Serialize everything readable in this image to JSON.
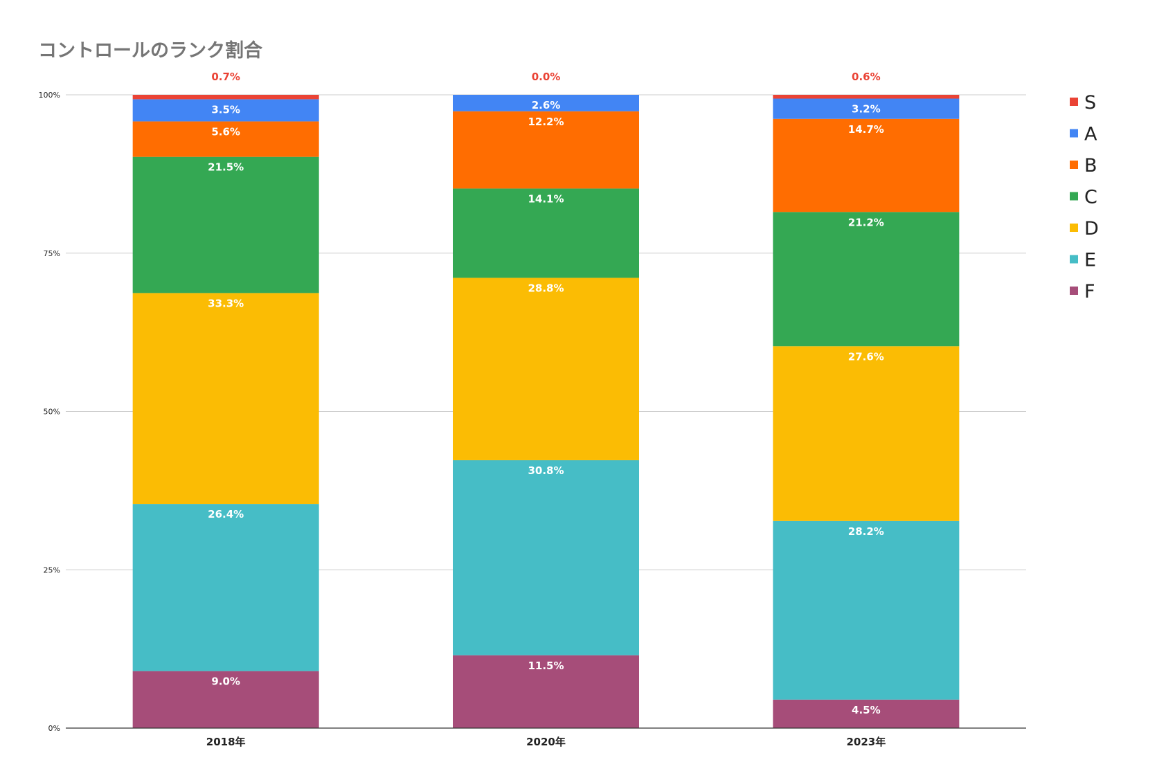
{
  "chart_data": {
    "type": "bar",
    "stacked": true,
    "title": "コントロールのランク割合",
    "xlabel": "",
    "ylabel": "",
    "categories": [
      "2018年",
      "2020年",
      "2023年"
    ],
    "ylim": [
      0,
      100
    ],
    "yticks": [
      0,
      25,
      50,
      75,
      100
    ],
    "ytick_labels": [
      "0%",
      "25%",
      "50%",
      "75%",
      "100%"
    ],
    "grid": true,
    "legend_position": "right",
    "series": [
      {
        "name": "F",
        "color": "#a64d79",
        "values": [
          9.0,
          11.5,
          4.5
        ],
        "labels": [
          "9.0%",
          "11.5%",
          "4.5%"
        ]
      },
      {
        "name": "E",
        "color": "#46bdc6",
        "values": [
          26.4,
          30.8,
          28.2
        ],
        "labels": [
          "26.4%",
          "30.8%",
          "28.2%"
        ]
      },
      {
        "name": "D",
        "color": "#fbbc04",
        "values": [
          33.3,
          28.8,
          27.6
        ],
        "labels": [
          "33.3%",
          "28.8%",
          "27.6%"
        ]
      },
      {
        "name": "C",
        "color": "#34a853",
        "values": [
          21.5,
          14.1,
          21.2
        ],
        "labels": [
          "21.5%",
          "14.1%",
          "21.2%"
        ]
      },
      {
        "name": "B",
        "color": "#ff6d01",
        "values": [
          5.6,
          12.2,
          14.7
        ],
        "labels": [
          "5.6%",
          "12.2%",
          "14.7%"
        ]
      },
      {
        "name": "A",
        "color": "#4285f4",
        "values": [
          3.5,
          2.6,
          3.2
        ],
        "labels": [
          "3.5%",
          "2.6%",
          "3.2%"
        ]
      },
      {
        "name": "S",
        "color": "#ea4335",
        "values": [
          0.7,
          0.0,
          0.6
        ],
        "labels": [
          "0.7%",
          "0.0%",
          "0.6%"
        ],
        "label_color": "#ea4335"
      }
    ],
    "legend_order": [
      "S",
      "A",
      "B",
      "C",
      "D",
      "E",
      "F"
    ]
  }
}
